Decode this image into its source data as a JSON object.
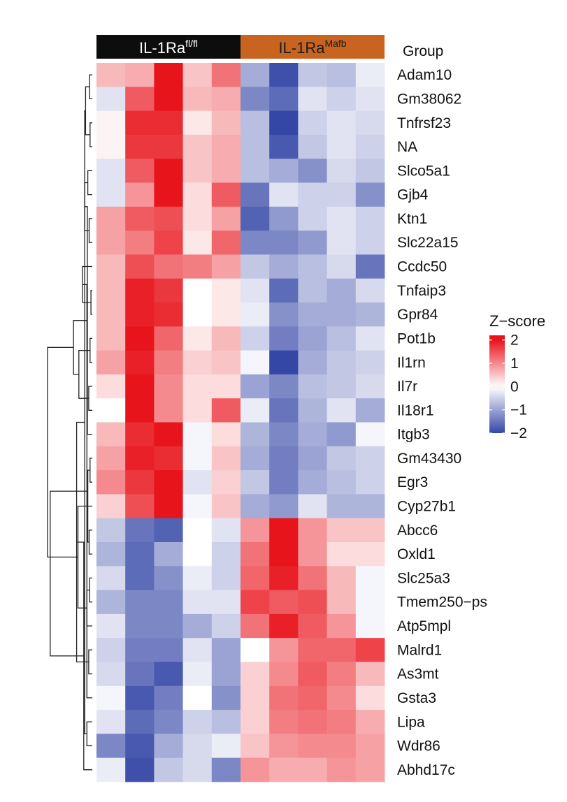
{
  "chart_data": {
    "type": "heatmap",
    "annotation": {
      "title": "Group",
      "groups": [
        {
          "name": "IL-1Ra",
          "superscript": "fl/fl",
          "color": "#0d0d0d",
          "text_color": "#ffffff",
          "columns": 5
        },
        {
          "name": "IL-1Ra",
          "superscript": "Mafb",
          "color": "#c96420",
          "text_color": "#1a1a1a",
          "columns": 5
        }
      ]
    },
    "rows": [
      "Adam10",
      "Gm38062",
      "Tnfrsf23",
      "NA",
      "Slco5a1",
      "Gjb4",
      "Ktn1",
      "Slc22a15",
      "Ccdc50",
      "Tnfaip3",
      "Gpr84",
      "Pot1b",
      "Il1rn",
      "Il7r",
      "Il18r1",
      "Itgb3",
      "Gm43430",
      "Egr3",
      "Cyp27b1",
      "Abcc6",
      "Oxld1",
      "Slc25a3",
      "Tmem250−ps",
      "Atp5mpl",
      "Malrd1",
      "As3mt",
      "Gsta3",
      "Lipa",
      "Wdr86",
      "Abhd17c"
    ],
    "values": [
      [
        0.6,
        0.7,
        2.0,
        0.5,
        1.2,
        -0.9,
        -1.9,
        -0.6,
        -0.7,
        -0.2
      ],
      [
        -0.3,
        1.4,
        2.0,
        0.6,
        0.7,
        -1.3,
        -1.6,
        -0.3,
        -0.5,
        -0.3
      ],
      [
        0.1,
        1.8,
        1.8,
        0.2,
        0.6,
        -0.7,
        -2.0,
        -0.5,
        -0.3,
        -0.4
      ],
      [
        0.1,
        1.7,
        1.7,
        0.5,
        0.7,
        -0.7,
        -1.8,
        -0.6,
        -0.3,
        -0.5
      ],
      [
        -0.3,
        1.4,
        2.2,
        0.5,
        0.7,
        -0.7,
        -0.9,
        -1.2,
        -0.4,
        -0.6
      ],
      [
        -0.3,
        0.9,
        2.1,
        0.3,
        1.4,
        -1.5,
        -0.3,
        -0.5,
        -0.5,
        -1.2
      ],
      [
        0.8,
        1.4,
        1.5,
        0.3,
        0.8,
        -1.7,
        -1.1,
        -0.5,
        -0.3,
        -0.5
      ],
      [
        0.8,
        1.1,
        1.6,
        0.2,
        1.3,
        -1.3,
        -1.3,
        -1.1,
        -0.3,
        -0.5
      ],
      [
        0.6,
        1.5,
        1.2,
        1.1,
        0.8,
        -0.6,
        -0.9,
        -0.7,
        -0.4,
        -1.5
      ],
      [
        0.6,
        1.9,
        1.7,
        0.0,
        0.2,
        -0.3,
        -1.6,
        -0.7,
        -0.9,
        -0.4
      ],
      [
        0.6,
        1.9,
        1.8,
        0.0,
        0.2,
        -0.2,
        -1.2,
        -0.9,
        -0.9,
        -0.8
      ],
      [
        0.6,
        2.0,
        1.3,
        0.2,
        0.6,
        -0.5,
        -1.4,
        -1.0,
        -0.7,
        -0.3
      ],
      [
        0.8,
        1.9,
        1.1,
        0.4,
        0.5,
        -0.1,
        -2.0,
        -0.9,
        -0.6,
        -0.5
      ],
      [
        0.3,
        2.2,
        1.0,
        0.3,
        0.3,
        -1.0,
        -1.3,
        -0.7,
        -0.6,
        -0.4
      ],
      [
        0.0,
        2.0,
        1.0,
        0.3,
        1.4,
        -0.2,
        -1.5,
        -0.8,
        -0.3,
        -0.9
      ],
      [
        0.6,
        1.8,
        2.0,
        -0.1,
        0.3,
        -0.8,
        -1.3,
        -0.9,
        -1.1,
        -0.1
      ],
      [
        0.8,
        1.9,
        1.8,
        -0.1,
        0.5,
        -0.9,
        -1.4,
        -1.0,
        -0.6,
        -0.5
      ],
      [
        1.0,
        1.7,
        2.1,
        -0.3,
        0.4,
        -0.6,
        -1.4,
        -0.9,
        -0.7,
        -0.5
      ],
      [
        0.4,
        1.5,
        2.2,
        -0.1,
        0.5,
        -0.9,
        -1.1,
        -0.3,
        -0.8,
        -0.8
      ],
      [
        -0.6,
        -1.5,
        -1.7,
        0.0,
        -0.3,
        0.9,
        2.0,
        0.9,
        0.5,
        0.5
      ],
      [
        -0.8,
        -1.6,
        -0.9,
        0.0,
        -0.5,
        1.2,
        2.1,
        0.9,
        0.3,
        0.3
      ],
      [
        -0.4,
        -1.6,
        -1.2,
        -0.2,
        -0.5,
        1.3,
        1.9,
        1.2,
        0.6,
        -0.1
      ],
      [
        -0.8,
        -1.3,
        -1.3,
        -0.3,
        -0.3,
        1.6,
        1.4,
        1.5,
        0.6,
        -0.1
      ],
      [
        -0.3,
        -1.3,
        -1.3,
        -0.9,
        -0.5,
        1.2,
        1.9,
        1.4,
        0.9,
        -0.1
      ],
      [
        -0.5,
        -1.4,
        -1.4,
        -0.3,
        -1.0,
        0.0,
        0.9,
        1.3,
        1.3,
        1.6
      ],
      [
        -0.4,
        -1.5,
        -1.8,
        -0.2,
        -1.0,
        0.4,
        1.0,
        1.4,
        1.1,
        0.6
      ],
      [
        -0.1,
        -1.8,
        -1.4,
        0.0,
        -1.2,
        0.4,
        1.2,
        1.3,
        1.0,
        0.3
      ],
      [
        -0.3,
        -1.6,
        -1.3,
        -0.5,
        -0.7,
        0.4,
        1.1,
        1.2,
        1.1,
        0.7
      ],
      [
        -1.3,
        -1.8,
        -0.9,
        -0.4,
        -0.2,
        0.5,
        0.9,
        1.0,
        1.0,
        0.8
      ],
      [
        -0.2,
        -1.9,
        -0.6,
        -0.4,
        -1.3,
        0.9,
        0.7,
        0.7,
        0.9,
        0.8
      ]
    ],
    "legend": {
      "title": "Z−score",
      "ticks": [
        2,
        1,
        0,
        -1,
        -2
      ],
      "tick_labels": [
        "2",
        "1",
        "0",
        "−1",
        "−2"
      ],
      "range": [
        -2,
        2.2
      ],
      "colors": {
        "low": "#3547a6",
        "mid": "#ffffff",
        "high": "#e8141c"
      }
    },
    "row_dendrogram": {
      "merges": [
        [
          0,
          1,
          0.06
        ],
        [
          2,
          3,
          0.05
        ],
        [
          4,
          5,
          0.1
        ],
        [
          6,
          7,
          0.07
        ],
        [
          9,
          10,
          0.03
        ],
        [
          11,
          12,
          0.05
        ],
        [
          13,
          14,
          0.08
        ],
        [
          16,
          17,
          0.05
        ],
        [
          19,
          20,
          0.07
        ],
        [
          21,
          22,
          0.06
        ],
        [
          24,
          25,
          0.08
        ],
        [
          27,
          28,
          0.12
        ],
        [
          30,
          31,
          0.15
        ],
        [
          34,
          8,
          0.22
        ],
        [
          32,
          33,
          0.17
        ],
        [
          37,
          38,
          0.1
        ],
        [
          41,
          42,
          0.17
        ],
        [
          36,
          35,
          0.3
        ],
        [
          15,
          44,
          0.11
        ],
        [
          45,
          18,
          0.17
        ],
        [
          40,
          46,
          0.35
        ],
        [
          39,
          23,
          0.12
        ],
        [
          43,
          26,
          0.12
        ],
        [
          50,
          29,
          0.19
        ],
        [
          49,
          51,
          0.32
        ],
        [
          47,
          48,
          0.42
        ],
        [
          53,
          52,
          0.94
        ],
        [
          54,
          55,
          1.0
        ]
      ]
    }
  }
}
